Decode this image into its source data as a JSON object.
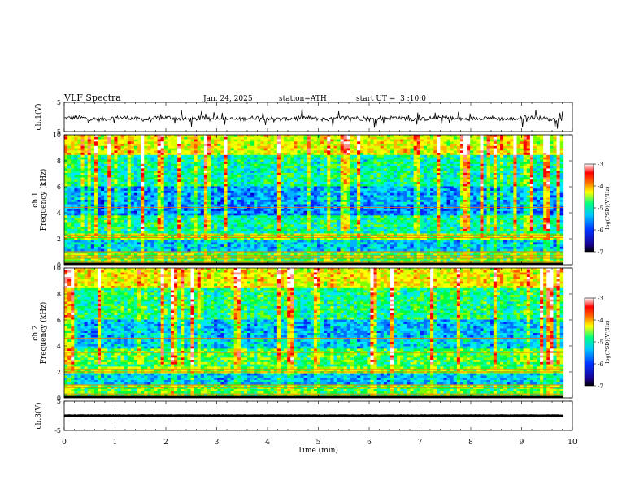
{
  "header": {
    "title": "VLF Spectra",
    "date": "Jan. 24, 2025",
    "station": "station=ATH",
    "start_ut": "start UT =  3 :10:0"
  },
  "chart_data": [
    {
      "id": "ch1_waveform",
      "type": "line",
      "ylabel": "ch.1(V)",
      "ylim": [
        -5,
        5
      ],
      "yticks": [
        "5",
        "-5"
      ],
      "xlim": [
        0,
        10
      ],
      "baseline": -0.5,
      "data_end_min": 9.82
    },
    {
      "id": "ch1_spectrogram",
      "type": "heatmap",
      "ylabel": "ch.1\nFrequency (kHz)",
      "ylim": [
        0,
        10
      ],
      "yticks": [
        "0",
        "2",
        "4",
        "6",
        "8",
        "10"
      ],
      "xlim": [
        0,
        10
      ],
      "data_end_min": 9.82,
      "colorbar": {
        "label": "log(PSD)(V²/Hz)",
        "range": [
          -7,
          -3
        ],
        "ticks": [
          "-3",
          "-4",
          "-5",
          "-6",
          "-7"
        ]
      },
      "lines_khz": [
        0.2,
        0.5,
        0.7,
        1.0,
        2.1,
        2.3,
        3.6,
        4.4
      ]
    },
    {
      "id": "ch2_spectrogram",
      "type": "heatmap",
      "ylabel": "ch.2\nFrequency (kHz)",
      "ylim": [
        0,
        10
      ],
      "yticks": [
        "0",
        "2",
        "4",
        "6",
        "8",
        "10"
      ],
      "xlim": [
        0,
        10
      ],
      "data_end_min": 9.82,
      "colorbar": {
        "label": "log(PSD)(V²/Hz)",
        "range": [
          -7,
          -3
        ],
        "ticks": [
          "-3",
          "-4",
          "-5",
          "-6",
          "-7"
        ]
      },
      "lines_khz": [
        0.3,
        0.8,
        1.0,
        2.0,
        2.2,
        3.5,
        4.6
      ]
    },
    {
      "id": "ch3_waveform",
      "type": "line",
      "ylabel": "ch.3(V)",
      "ylim": [
        -5,
        5
      ],
      "yticks": [
        "5",
        "-5"
      ],
      "xlim": [
        0,
        10
      ],
      "baseline": 0,
      "data_end_min": 9.82
    }
  ],
  "xaxis": {
    "label": "Time (min)",
    "ticks": [
      "0",
      "1",
      "2",
      "3",
      "4",
      "5",
      "6",
      "7",
      "8",
      "9",
      "10"
    ]
  }
}
